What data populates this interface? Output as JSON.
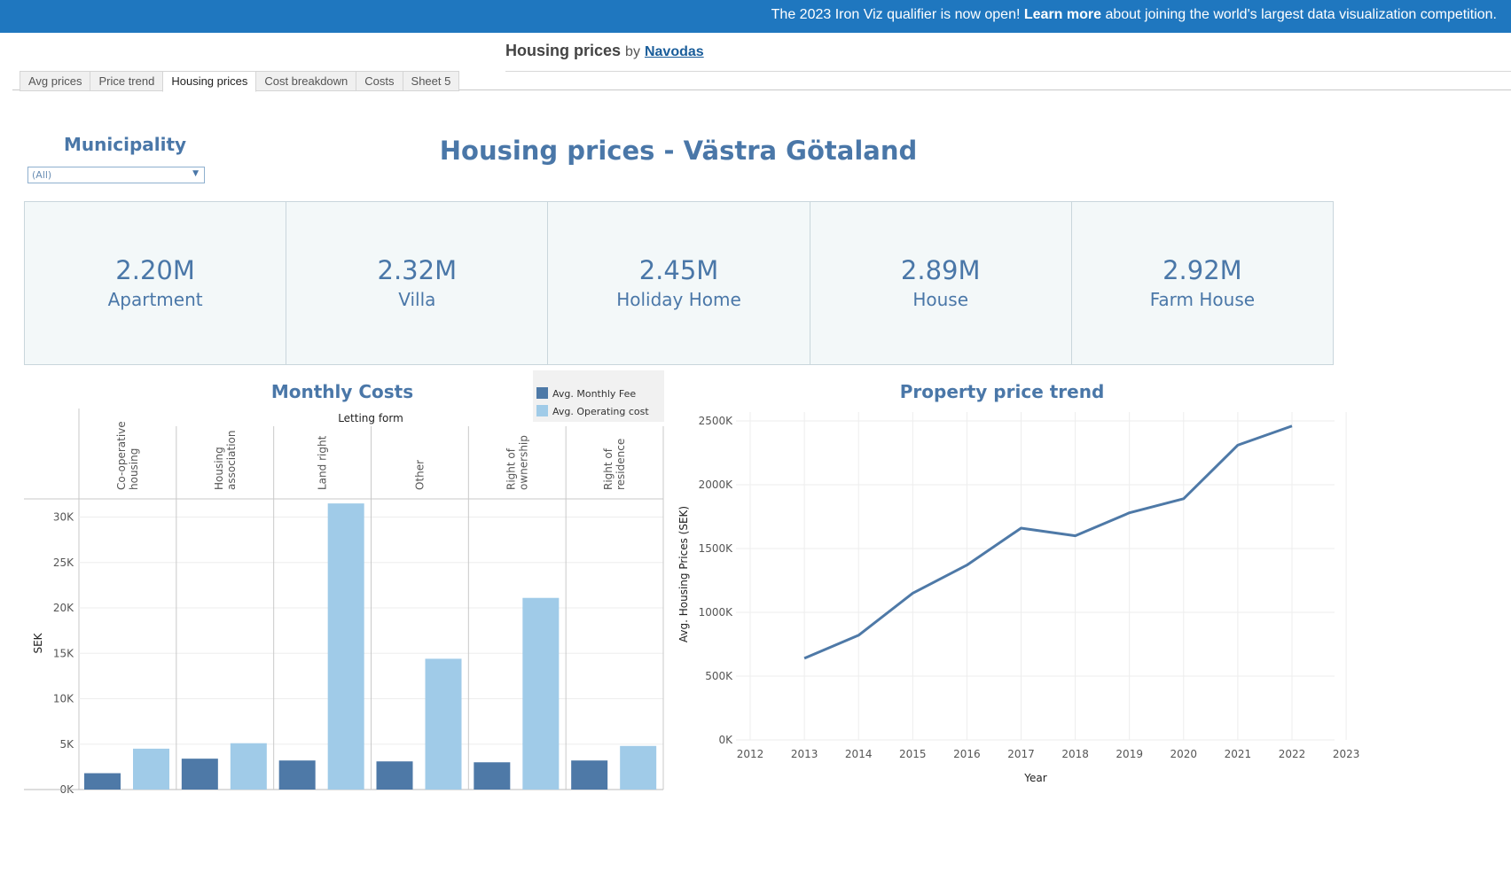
{
  "banner": {
    "prefix": "The 2023 Iron Viz qualifier is now open! ",
    "link": "Learn more",
    "suffix": " about joining the world's largest data visualization competition."
  },
  "viz": {
    "title": "Housing prices",
    "by": "by",
    "author": "Navodas"
  },
  "tabs": [
    {
      "label": "Avg prices",
      "active": false
    },
    {
      "label": "Price trend",
      "active": false
    },
    {
      "label": "Housing prices",
      "active": true
    },
    {
      "label": "Cost breakdown",
      "active": false
    },
    {
      "label": "Costs",
      "active": false
    },
    {
      "label": "Sheet 5",
      "active": false
    }
  ],
  "filter": {
    "label": "Municipality",
    "value": "(All)"
  },
  "dashboard_title": "Housing prices - Västra Götaland",
  "kpis": [
    {
      "value": "2.20M",
      "label": "Apartment"
    },
    {
      "value": "2.32M",
      "label": "Villa"
    },
    {
      "value": "2.45M",
      "label": "Holiday Home"
    },
    {
      "value": "2.89M",
      "label": "House"
    },
    {
      "value": "2.92M",
      "label": "Farm House"
    }
  ],
  "colors": {
    "fee": "#4e79a7",
    "operating": "#a0cbe8",
    "accent": "#4a77a8",
    "banner": "#1f77bf"
  },
  "chart_data": [
    {
      "type": "bar",
      "title": "Monthly Costs",
      "column_header": "Letting form",
      "ylabel": "SEK",
      "ylim": [
        0,
        32000
      ],
      "yticks": [
        "0K",
        "5K",
        "10K",
        "15K",
        "20K",
        "25K",
        "30K"
      ],
      "legend_position": "top-right",
      "categories": [
        "Co-operative housing",
        "Housing association",
        "Land right",
        "Other",
        "Right of ownership",
        "Right of residence"
      ],
      "category_labels": [
        [
          "Co-operative",
          "housing"
        ],
        [
          "Housing",
          "association"
        ],
        [
          "Land right"
        ],
        [
          "Other"
        ],
        [
          "Right of",
          "ownership"
        ],
        [
          "Right of",
          "residence"
        ]
      ],
      "series": [
        {
          "name": "Avg. Monthly Fee",
          "values": [
            1800,
            3400,
            3200,
            3100,
            3000,
            3200
          ]
        },
        {
          "name": "Avg. Operating cost",
          "values": [
            4500,
            5100,
            31500,
            14400,
            21100,
            4800
          ]
        }
      ]
    },
    {
      "type": "line",
      "title": "Property price trend",
      "xlabel": "Year",
      "ylabel": "Avg. Housing Prices (SEK)",
      "xlim": [
        2012,
        2023
      ],
      "ylim": [
        0,
        2500000
      ],
      "xticks": [
        "2012",
        "2013",
        "2014",
        "2015",
        "2016",
        "2017",
        "2018",
        "2019",
        "2020",
        "2021",
        "2022",
        "2023"
      ],
      "yticks": [
        "0K",
        "500K",
        "1000K",
        "1500K",
        "2000K",
        "2500K"
      ],
      "x": [
        2013,
        2014,
        2015,
        2016,
        2017,
        2018,
        2019,
        2020,
        2021,
        2022
      ],
      "y": [
        640000,
        820000,
        1150000,
        1370000,
        1660000,
        1600000,
        1780000,
        1890000,
        2310000,
        2460000
      ]
    }
  ]
}
